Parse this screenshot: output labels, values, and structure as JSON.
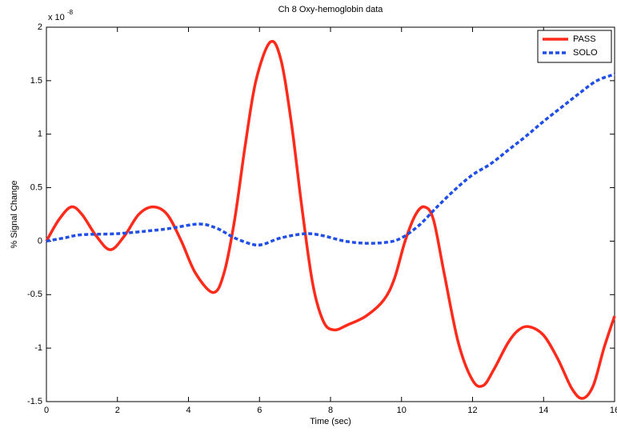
{
  "chart_data": {
    "type": "line",
    "title": "Ch 8 Oxy-hemoglobin data",
    "x_label": "Time (sec)",
    "y_label": "% Signal Change",
    "y_exponent_base": "x 10",
    "y_exponent": "-8",
    "xlim": [
      0,
      16
    ],
    "xticks": [
      0,
      2,
      4,
      6,
      8,
      10,
      12,
      14,
      16
    ],
    "ylim": [
      -1.5,
      2
    ],
    "yticks": [
      -1.5,
      -1,
      -0.5,
      0,
      0.5,
      1,
      1.5,
      2
    ],
    "legend": "upper right",
    "series": [
      {
        "name": "PASS",
        "color": "#ff2a1a",
        "dash": "solid",
        "x": [
          0,
          0.35,
          0.7,
          1.0,
          1.4,
          1.8,
          2.2,
          2.6,
          3.0,
          3.4,
          3.8,
          4.2,
          4.7,
          5.0,
          5.3,
          5.6,
          5.9,
          6.3,
          6.6,
          6.9,
          7.2,
          7.5,
          7.8,
          8.1,
          8.5,
          9.0,
          9.5,
          9.8,
          10.1,
          10.4,
          10.65,
          10.9,
          11.2,
          11.6,
          12.0,
          12.3,
          12.6,
          13.0,
          13.3,
          13.6,
          14.0,
          14.4,
          14.8,
          15.1,
          15.4,
          15.7,
          16.0
        ],
        "values": [
          0,
          0.2,
          0.32,
          0.25,
          0.05,
          -0.08,
          0.05,
          0.25,
          0.32,
          0.25,
          0.0,
          -0.3,
          -0.48,
          -0.3,
          0.2,
          0.9,
          1.5,
          1.86,
          1.7,
          1.1,
          0.3,
          -0.4,
          -0.75,
          -0.83,
          -0.78,
          -0.7,
          -0.55,
          -0.35,
          0.0,
          0.25,
          0.32,
          0.2,
          -0.3,
          -0.95,
          -1.3,
          -1.35,
          -1.2,
          -0.95,
          -0.83,
          -0.8,
          -0.88,
          -1.1,
          -1.38,
          -1.47,
          -1.35,
          -1.0,
          -0.7
        ]
      },
      {
        "name": "SOLO",
        "color": "#1f4fe6",
        "dash": "dashed",
        "x": [
          0,
          0.5,
          1,
          2,
          3,
          3.5,
          4.3,
          4.8,
          5.3,
          5.8,
          6.1,
          6.6,
          7.3,
          7.8,
          8.4,
          9,
          9.6,
          10,
          10.5,
          11,
          11.5,
          12,
          12.5,
          13,
          13.5,
          14,
          14.5,
          15,
          15.5,
          16
        ],
        "values": [
          0,
          0.03,
          0.06,
          0.07,
          0.1,
          0.12,
          0.16,
          0.12,
          0.03,
          -0.03,
          -0.03,
          0.03,
          0.07,
          0.05,
          0.0,
          -0.02,
          -0.01,
          0.03,
          0.15,
          0.32,
          0.48,
          0.62,
          0.72,
          0.85,
          0.98,
          1.12,
          1.25,
          1.38,
          1.5,
          1.56
        ]
      }
    ]
  }
}
